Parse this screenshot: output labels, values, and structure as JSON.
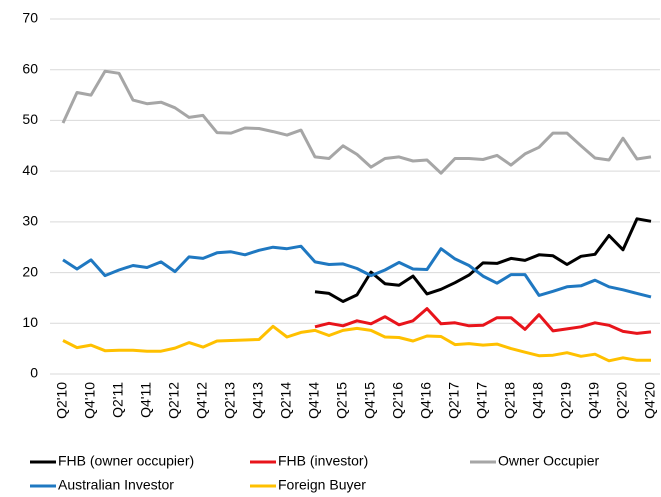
{
  "chart_data": {
    "type": "line",
    "categories": [
      "Q2'10",
      null,
      "Q4'10",
      null,
      "Q2'11",
      null,
      "Q4'11",
      null,
      "Q2'12",
      null,
      "Q4'12",
      null,
      "Q2'13",
      null,
      "Q4'13",
      null,
      "Q2'14",
      null,
      "Q4'14",
      null,
      "Q2'15",
      null,
      "Q4'15",
      null,
      "Q2'16",
      null,
      "Q4'16",
      null,
      "Q2'17",
      null,
      "Q4'17",
      null,
      "Q2'18",
      null,
      "Q4'18",
      null,
      "Q2'19",
      null,
      "Q4'19",
      null,
      "Q2'20",
      null,
      "Q4'20"
    ],
    "series": [
      {
        "name": "FHB (owner occupier)",
        "color": "#000000",
        "values": [
          null,
          null,
          null,
          null,
          null,
          null,
          null,
          null,
          null,
          null,
          null,
          null,
          null,
          null,
          null,
          null,
          null,
          null,
          16.2,
          15.9,
          14.3,
          15.6,
          20.1,
          17.8,
          17.5,
          19.3,
          15.8,
          16.7,
          18,
          19.5,
          21.9,
          21.8,
          22.8,
          22.4,
          23.5,
          23.3,
          21.6,
          23.2,
          23.6,
          27.3,
          24.5,
          30.6,
          30.1
        ]
      },
      {
        "name": "FHB (investor)",
        "color": "#e8141b",
        "values": [
          null,
          null,
          null,
          null,
          null,
          null,
          null,
          null,
          null,
          null,
          null,
          null,
          null,
          null,
          null,
          null,
          null,
          null,
          9.3,
          10,
          9.5,
          10.5,
          9.9,
          11.3,
          9.7,
          10.5,
          12.9,
          9.9,
          10.1,
          9.5,
          9.6,
          11.1,
          11.1,
          8.8,
          11.7,
          8.5,
          8.9,
          9.3,
          10.1,
          9.6,
          8.4,
          8,
          8.3
        ]
      },
      {
        "name": "Owner Occupier",
        "color": "#a6a6a6",
        "values": [
          49.5,
          55.5,
          55,
          59.7,
          59.3,
          54,
          53.3,
          53.6,
          52.5,
          50.6,
          51,
          47.6,
          47.5,
          48.5,
          48.4,
          47.8,
          47.1,
          48.1,
          42.8,
          42.5,
          45,
          43.3,
          40.8,
          42.5,
          42.8,
          42,
          42.2,
          39.6,
          42.5,
          42.5,
          42.3,
          43.1,
          41.2,
          43.4,
          44.7,
          47.5,
          47.5,
          45,
          42.6,
          42.2,
          46.5,
          42.4,
          42.8
        ]
      },
      {
        "name": "Australian Investor",
        "color": "#1f78c1",
        "values": [
          22.5,
          20.7,
          22.5,
          19.4,
          20.5,
          21.4,
          21,
          22.1,
          20.2,
          23.1,
          22.8,
          23.9,
          24.1,
          23.5,
          24.4,
          25,
          24.7,
          25.2,
          22.1,
          21.6,
          21.7,
          20.8,
          19.4,
          20.5,
          22,
          20.7,
          20.6,
          24.7,
          22.7,
          21.4,
          19.3,
          17.9,
          19.6,
          19.6,
          15.5,
          16.3,
          17.2,
          17.4,
          18.5,
          17.2,
          16.6,
          15.9,
          15.2
        ]
      },
      {
        "name": "Foreign Buyer",
        "color": "#ffc000",
        "values": [
          6.6,
          5.2,
          5.7,
          4.6,
          4.7,
          4.7,
          4.5,
          4.5,
          5.1,
          6.2,
          5.3,
          6.5,
          6.6,
          6.7,
          6.8,
          9.4,
          7.3,
          8.2,
          8.6,
          7.6,
          8.6,
          9,
          8.6,
          7.3,
          7.2,
          6.5,
          7.5,
          7.4,
          5.8,
          6,
          5.7,
          5.9,
          5,
          4.3,
          3.6,
          3.7,
          4.2,
          3.5,
          3.9,
          2.6,
          3.2,
          2.7,
          2.7
        ]
      }
    ],
    "ylim": [
      0,
      70
    ],
    "yticks": [
      0,
      10,
      20,
      30,
      40,
      50,
      60,
      70
    ],
    "grid": true,
    "legend": "bottom"
  }
}
